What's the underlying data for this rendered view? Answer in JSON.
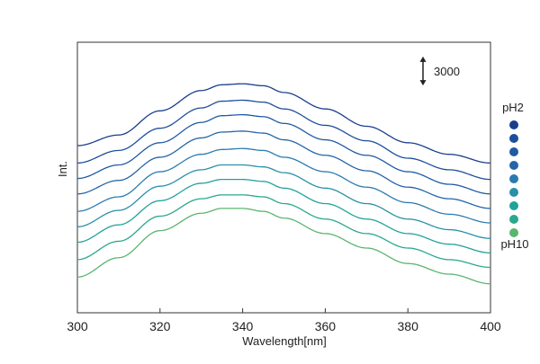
{
  "chart_data": {
    "type": "line",
    "title": "",
    "xlabel": "Wavelength[nm]",
    "ylabel": "Int.",
    "xlim": [
      300,
      400
    ],
    "ylim": [
      0,
      28000
    ],
    "x_ticks": [
      "300",
      "320",
      "340",
      "360",
      "380",
      "400"
    ],
    "y_ticks_shown": false,
    "grid": false,
    "scale_bar": {
      "label": "3000",
      "value": 3000
    },
    "legend": {
      "placement": "right",
      "top_label": "pH2",
      "bottom_label": "pH10"
    },
    "x": [
      300,
      310,
      320,
      330,
      335,
      340,
      345,
      350,
      360,
      370,
      380,
      390,
      400
    ],
    "series": [
      {
        "color": "#1a3e8c",
        "values": [
          17300,
          18400,
          20900,
          23000,
          23600,
          23700,
          23500,
          22800,
          21100,
          19300,
          17600,
          16400,
          15500
        ]
      },
      {
        "color": "#1d4e9b",
        "values": [
          15500,
          16800,
          19100,
          21200,
          21900,
          22000,
          21800,
          21100,
          19400,
          17800,
          16000,
          14800,
          13800
        ]
      },
      {
        "color": "#1f5aa3",
        "values": [
          13900,
          15300,
          17600,
          19700,
          20400,
          20500,
          20300,
          19600,
          17900,
          16300,
          14600,
          13300,
          12300
        ]
      },
      {
        "color": "#2464a8",
        "values": [
          12300,
          13700,
          16100,
          18100,
          18700,
          18800,
          18600,
          17900,
          16300,
          14700,
          13000,
          11800,
          10800
        ]
      },
      {
        "color": "#2a7bb0",
        "values": [
          10500,
          12000,
          14600,
          16400,
          16900,
          17000,
          16800,
          16100,
          14600,
          13000,
          11400,
          10200,
          9300
        ]
      },
      {
        "color": "#2a8fa9",
        "values": [
          8900,
          10600,
          13100,
          14800,
          15300,
          15300,
          15100,
          14500,
          12900,
          11300,
          9700,
          8600,
          7700
        ]
      },
      {
        "color": "#22a29b",
        "values": [
          7300,
          9100,
          11600,
          13400,
          13800,
          13800,
          13600,
          12900,
          11300,
          9700,
          8200,
          7100,
          6200
        ]
      },
      {
        "color": "#2aa88c",
        "values": [
          5500,
          7400,
          10000,
          11800,
          12200,
          12200,
          12000,
          11300,
          9700,
          8200,
          6700,
          5500,
          4700
        ]
      },
      {
        "color": "#5bb56f",
        "values": [
          3700,
          5700,
          8500,
          10300,
          10800,
          10800,
          10500,
          9800,
          8200,
          6700,
          5100,
          4000,
          3000
        ]
      }
    ]
  }
}
